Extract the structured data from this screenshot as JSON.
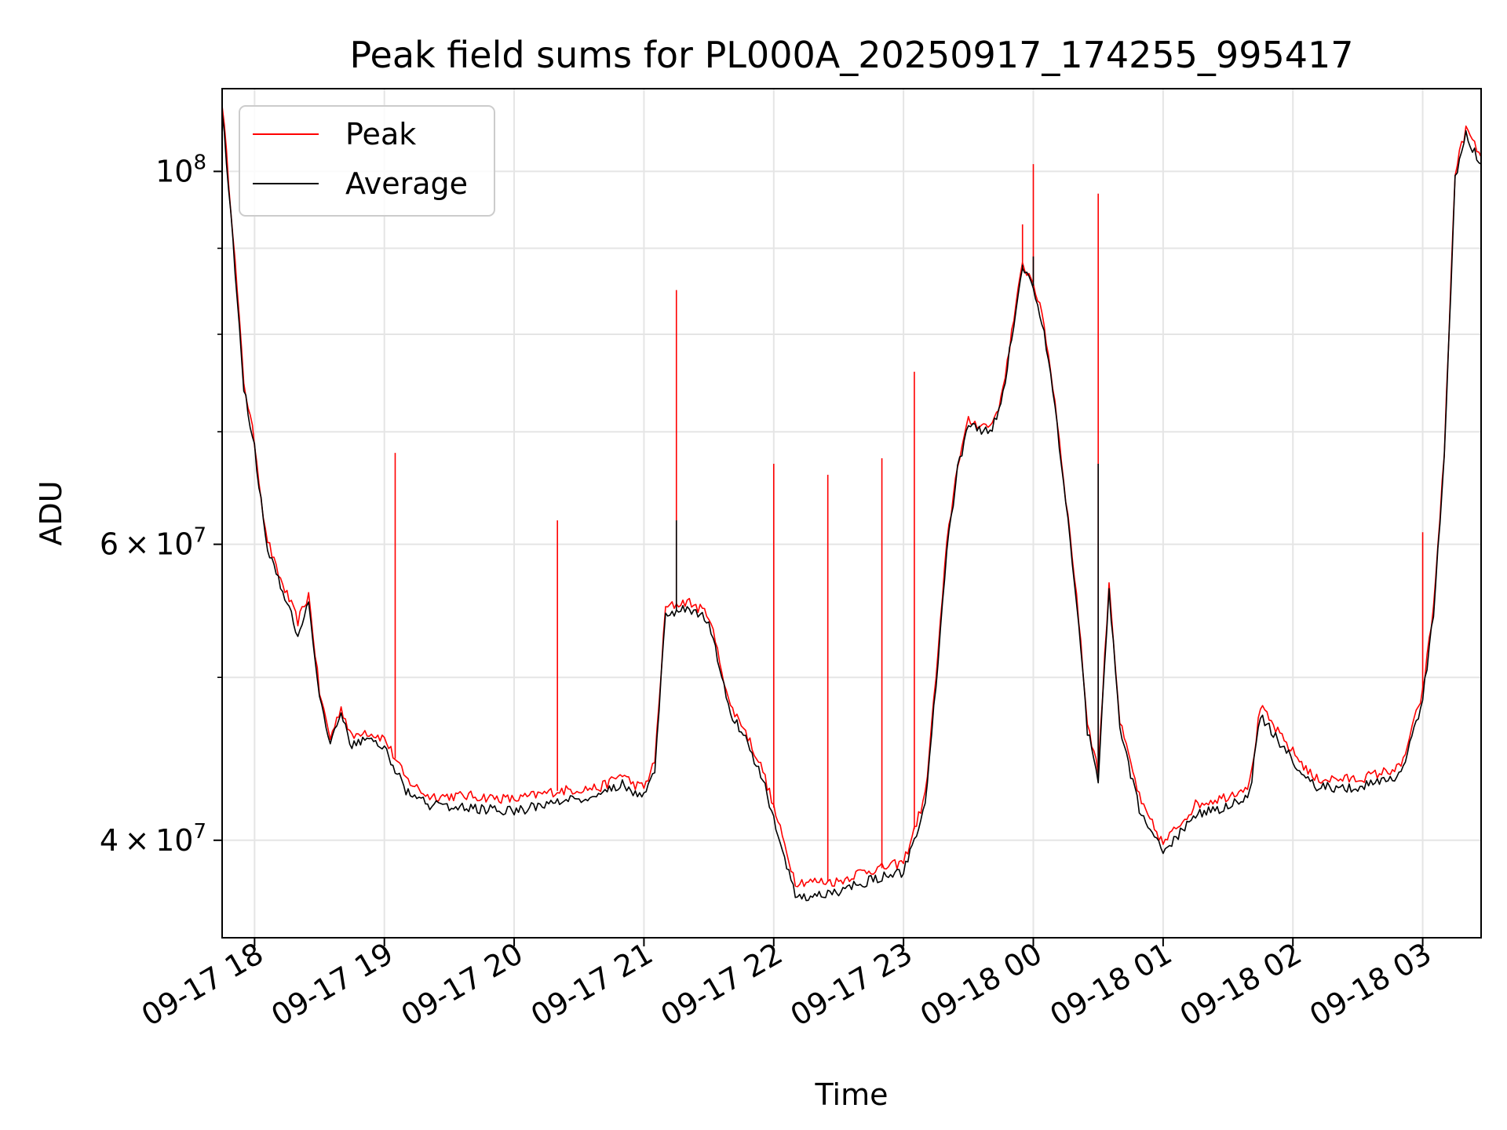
{
  "chart_data": {
    "type": "line",
    "title": "Peak field sums for PL000A_20250917_174255_995417",
    "xlabel": "Time",
    "ylabel": "ADU",
    "yscale": "log",
    "ylim": [
      35000000,
      112000000
    ],
    "xlim": [
      "2025-09-17 17:45",
      "2025-09-18 03:27"
    ],
    "grid": true,
    "legend": {
      "placement": "upper left"
    },
    "x_ticks": [
      "09-17 18",
      "09-17 19",
      "09-17 20",
      "09-17 21",
      "09-17 22",
      "09-17 23",
      "09-18 00",
      "09-18 01",
      "09-18 02",
      "09-18 03"
    ],
    "y_ticks": [
      {
        "value": 40000000,
        "base": "4",
        "exp": "7"
      },
      {
        "value": 60000000,
        "base": "6",
        "exp": "7"
      },
      {
        "value": 100000000,
        "base": "10",
        "exp": "8"
      }
    ],
    "x": [
      "2025-09-17 17:45",
      "2025-09-17 17:50",
      "2025-09-17 17:55",
      "2025-09-17 18:00",
      "2025-09-17 18:05",
      "2025-09-17 18:10",
      "2025-09-17 18:15",
      "2025-09-17 18:20",
      "2025-09-17 18:25",
      "2025-09-17 18:30",
      "2025-09-17 18:35",
      "2025-09-17 18:40",
      "2025-09-17 18:45",
      "2025-09-17 18:50",
      "2025-09-17 19:00",
      "2025-09-17 19:10",
      "2025-09-17 19:20",
      "2025-09-17 19:40",
      "2025-09-17 20:00",
      "2025-09-17 20:20",
      "2025-09-17 20:40",
      "2025-09-17 20:50",
      "2025-09-17 20:55",
      "2025-09-17 21:00",
      "2025-09-17 21:05",
      "2025-09-17 21:10",
      "2025-09-17 21:20",
      "2025-09-17 21:30",
      "2025-09-17 21:40",
      "2025-09-17 21:45",
      "2025-09-17 21:55",
      "2025-09-17 22:10",
      "2025-09-17 22:30",
      "2025-09-17 22:40",
      "2025-09-17 22:50",
      "2025-09-17 23:00",
      "2025-09-17 23:10",
      "2025-09-17 23:15",
      "2025-09-17 23:20",
      "2025-09-17 23:25",
      "2025-09-17 23:30",
      "2025-09-17 23:40",
      "2025-09-17 23:45",
      "2025-09-17 23:55",
      "2025-09-18 00:00",
      "2025-09-18 00:05",
      "2025-09-18 00:10",
      "2025-09-18 00:15",
      "2025-09-18 00:20",
      "2025-09-18 00:25",
      "2025-09-18 00:30",
      "2025-09-18 00:35",
      "2025-09-18 00:40",
      "2025-09-18 00:50",
      "2025-09-18 01:00",
      "2025-09-18 01:15",
      "2025-09-18 01:30",
      "2025-09-18 01:40",
      "2025-09-18 01:45",
      "2025-09-18 01:55",
      "2025-09-18 02:10",
      "2025-09-18 02:30",
      "2025-09-18 02:50",
      "2025-09-18 03:00",
      "2025-09-18 03:05",
      "2025-09-18 03:10",
      "2025-09-18 03:15",
      "2025-09-18 03:20",
      "2025-09-18 03:27"
    ],
    "series": [
      {
        "name": "Peak",
        "color": "#ff0000",
        "values": [
          110000000,
          92000000,
          75000000,
          69000000,
          61000000,
          58000000,
          56000000,
          54000000,
          56000000,
          49000000,
          46000000,
          48000000,
          46000000,
          46500000,
          46000000,
          43500000,
          42500000,
          42500000,
          42300000,
          42800000,
          43000000,
          43800000,
          43200000,
          43000000,
          44500000,
          55000000,
          55500000,
          54500000,
          48000000,
          47000000,
          44000000,
          37800000,
          37800000,
          38300000,
          38500000,
          38800000,
          42500000,
          50000000,
          60000000,
          67000000,
          71000000,
          70500000,
          73000000,
          88000000,
          86000000,
          81000000,
          73000000,
          64000000,
          56000000,
          47000000,
          44000000,
          57000000,
          47000000,
          42000000,
          39800000,
          42000000,
          42500000,
          43200000,
          48000000,
          46000000,
          43500000,
          43500000,
          44200000,
          49000000,
          55000000,
          68000000,
          100000000,
          106000000,
          102000000
        ],
        "spikes": [
          {
            "x": "2025-09-17 19:05",
            "y": 68000000
          },
          {
            "x": "2025-09-17 20:20",
            "y": 62000000
          },
          {
            "x": "2025-09-17 21:15",
            "y": 85000000
          },
          {
            "x": "2025-09-17 22:00",
            "y": 67000000
          },
          {
            "x": "2025-09-17 22:25",
            "y": 66000000
          },
          {
            "x": "2025-09-17 22:50",
            "y": 67500000
          },
          {
            "x": "2025-09-17 23:05",
            "y": 76000000
          },
          {
            "x": "2025-09-17 23:55",
            "y": 93000000
          },
          {
            "x": "2025-09-18 00:00",
            "y": 101000000
          },
          {
            "x": "2025-09-18 00:30",
            "y": 97000000
          },
          {
            "x": "2025-09-18 03:00",
            "y": 61000000
          }
        ]
      },
      {
        "name": "Average",
        "color": "#000000",
        "values": [
          109000000,
          91000000,
          74500000,
          68500000,
          60500000,
          57500000,
          55500000,
          53000000,
          55500000,
          48500000,
          45500000,
          47500000,
          45500000,
          46000000,
          45300000,
          42800000,
          42000000,
          41800000,
          41600000,
          42200000,
          42500000,
          43300000,
          42800000,
          42600000,
          44000000,
          54500000,
          55000000,
          54000000,
          47500000,
          46500000,
          43500000,
          37000000,
          37200000,
          37700000,
          38000000,
          38300000,
          42000000,
          49500000,
          59500000,
          66500000,
          70500000,
          70000000,
          72500000,
          87500000,
          85500000,
          80500000,
          72500000,
          63500000,
          55500000,
          46500000,
          43500000,
          56500000,
          46500000,
          41300000,
          39300000,
          41400000,
          41900000,
          42600000,
          47500000,
          45500000,
          43000000,
          43000000,
          43700000,
          48500000,
          54500000,
          67500000,
          99000000,
          105000000,
          101000000
        ],
        "spikes": [
          {
            "x": "2025-09-17 21:15",
            "y": 62000000
          },
          {
            "x": "2025-09-17 23:55",
            "y": 88000000
          },
          {
            "x": "2025-09-18 00:00",
            "y": 89000000
          },
          {
            "x": "2025-09-18 00:30",
            "y": 67000000
          }
        ]
      }
    ]
  }
}
